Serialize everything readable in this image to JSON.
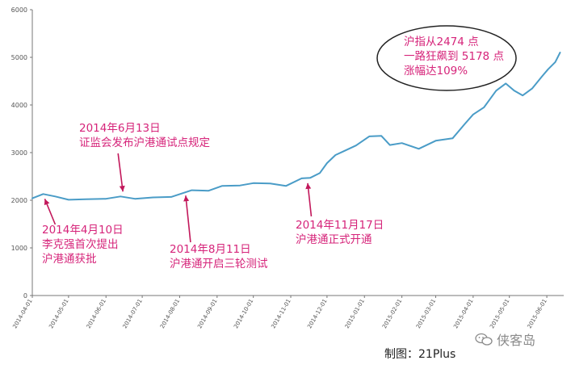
{
  "chart_data": {
    "type": "line",
    "color": "#4a9cc7",
    "ylim": [
      0,
      6000
    ],
    "yticks": [
      0,
      1000,
      2000,
      3000,
      4000,
      5000,
      6000
    ],
    "xlim": [
      "2014-04-01",
      "2015-06-15"
    ],
    "xtick_labels": [
      "2014-04-01",
      "2014-05-01",
      "2014-06-01",
      "2014-07-01",
      "2014-08-01",
      "2014-09-01",
      "2014-10-01",
      "2014-11-01",
      "2014-12-01",
      "2015-01-01",
      "2015-02-01",
      "2015-03-01",
      "2015-04-01",
      "2015-05-01",
      "2015-06-01"
    ],
    "series": [
      {
        "x": [
          "2014-04-01",
          "2014-04-10",
          "2014-04-20",
          "2014-05-01",
          "2014-05-15",
          "2014-06-01",
          "2014-06-13",
          "2014-06-25",
          "2014-07-10",
          "2014-07-25",
          "2014-08-11",
          "2014-08-25",
          "2014-09-05",
          "2014-09-20",
          "2014-10-01",
          "2014-10-15",
          "2014-10-28",
          "2014-11-10",
          "2014-11-17",
          "2014-11-25",
          "2014-12-01",
          "2014-12-08",
          "2014-12-15",
          "2014-12-25",
          "2015-01-05",
          "2015-01-15",
          "2015-01-22",
          "2015-02-01",
          "2015-02-15",
          "2015-03-01",
          "2015-03-15",
          "2015-03-25",
          "2015-04-01",
          "2015-04-10",
          "2015-04-20",
          "2015-04-28",
          "2015-05-05",
          "2015-05-12",
          "2015-05-20",
          "2015-05-28",
          "2015-06-02",
          "2015-06-08",
          "2015-06-12"
        ],
        "values": [
          2040,
          2130,
          2080,
          2010,
          2020,
          2030,
          2080,
          2030,
          2060,
          2070,
          2210,
          2200,
          2300,
          2310,
          2360,
          2350,
          2300,
          2460,
          2470,
          2570,
          2780,
          2950,
          3030,
          3150,
          3340,
          3350,
          3160,
          3200,
          3080,
          3250,
          3300,
          3600,
          3800,
          3950,
          4300,
          4450,
          4300,
          4200,
          4350,
          4600,
          4750,
          4900,
          5100
        ]
      }
    ]
  },
  "annotations": {
    "oval": [
      "沪指从2474 点",
      "一路狂飙到 5178 点",
      "涨幅达109%"
    ],
    "june13": [
      "2014年6月13日",
      "证监会发布沪港通试点规定"
    ],
    "april10": [
      "2014年4月10日",
      "李克强首次提出",
      "沪港通获批"
    ],
    "aug11": [
      "2014年8月11日",
      "沪港通开启三轮测试"
    ],
    "nov17": [
      "2014年11月17日",
      "沪港通正式开通"
    ]
  },
  "credit": "制图：21Plus",
  "watermark": "侠客岛"
}
